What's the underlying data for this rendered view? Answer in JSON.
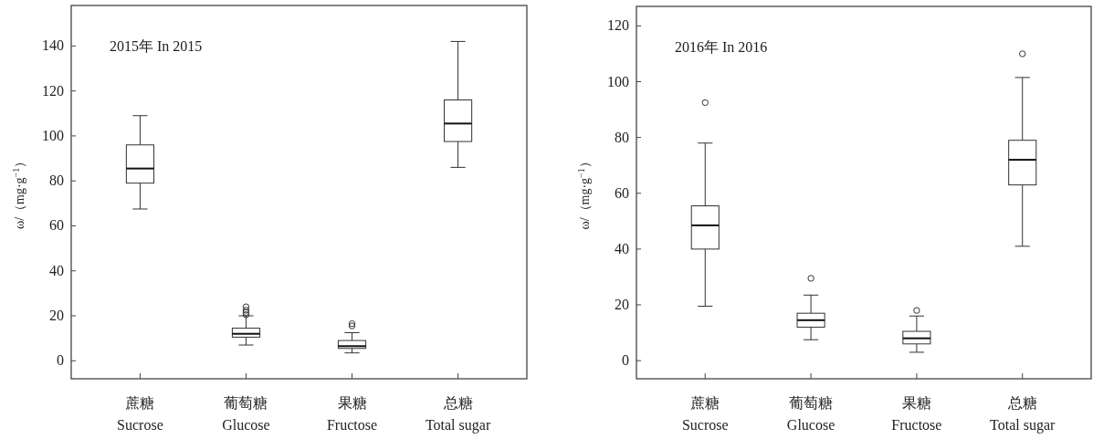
{
  "chart_data": [
    {
      "type": "box",
      "ylabel": "ω/（mg·g$^{−1}$）",
      "annotations": [
        "2015年  In  2015"
      ],
      "categories": [
        "蔗糖\nSucrose",
        "葡萄糖\nGlucose",
        "果糖\nFructose",
        "总糖\nTotal sugar"
      ],
      "boxes": [
        {
          "low": 67.5,
          "q1": 79,
          "median": 85.5,
          "q3": 96,
          "high": 109
        },
        {
          "low": 7,
          "q1": 10.5,
          "median": 12,
          "q3": 14.5,
          "high": 20,
          "outliers": [
            20.5,
            21.5,
            22.5,
            24
          ]
        },
        {
          "low": 3.5,
          "q1": 5.5,
          "median": 6.5,
          "q3": 9,
          "high": 12.5,
          "outliers": [
            15.5,
            16.5
          ]
        },
        {
          "low": 86,
          "q1": 97.5,
          "median": 105.5,
          "q3": 116,
          "high": 142
        }
      ],
      "ylim": [
        -8,
        158
      ],
      "yticks": [
        0,
        20,
        40,
        60,
        80,
        100,
        120,
        140
      ]
    },
    {
      "type": "box",
      "ylabel": "ω/（mg·g$^{−1}$）",
      "annotations": [
        "2016年  In  2016"
      ],
      "categories": [
        "蔗糖\nSucrose",
        "葡萄糖\nGlucose",
        "果糖\nFructose",
        "总糖\nTotal sugar"
      ],
      "boxes": [
        {
          "low": 19.5,
          "q1": 40,
          "median": 48.5,
          "q3": 55.5,
          "high": 78,
          "outliers": [
            92.5
          ]
        },
        {
          "low": 7.5,
          "q1": 12,
          "median": 14.5,
          "q3": 17,
          "high": 23.5,
          "outliers": [
            29.5
          ]
        },
        {
          "low": 3,
          "q1": 6,
          "median": 8,
          "q3": 10.5,
          "high": 16,
          "outliers": [
            18
          ]
        },
        {
          "low": 41,
          "q1": 63,
          "median": 72,
          "q3": 79,
          "high": 101.5,
          "outliers": [
            110
          ]
        }
      ],
      "ylim": [
        -6.5,
        127
      ],
      "yticks": [
        0,
        20,
        40,
        60,
        80,
        100,
        120
      ]
    }
  ]
}
